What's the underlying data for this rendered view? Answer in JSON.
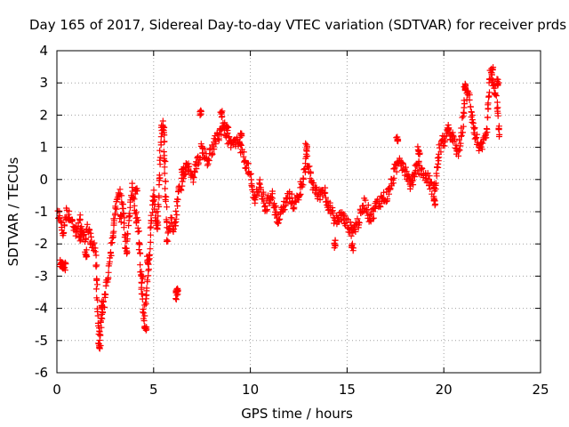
{
  "chart_data": {
    "type": "scatter",
    "title": "Day 165 of 2017, Sidereal Day-to-day VTEC variation (SDTVAR) for receiver prds",
    "xlabel": "GPS time / hours",
    "ylabel": "SDTVAR / TECUs",
    "xlim": [
      0,
      25
    ],
    "ylim": [
      -6,
      4
    ],
    "xticks": [
      0,
      5,
      10,
      15,
      20,
      25
    ],
    "yticks": [
      -6,
      -5,
      -4,
      -3,
      -2,
      -1,
      0,
      1,
      2,
      3,
      4
    ],
    "grid": true,
    "marker": "plus",
    "color": "#ff0000",
    "series": [
      {
        "name": "SDTVAR",
        "trend": [
          [
            0.0,
            -1.3
          ],
          [
            0.1,
            -1.1
          ],
          [
            0.3,
            -1.7
          ],
          [
            0.5,
            -1.0
          ],
          [
            0.8,
            -1.3
          ],
          [
            1.0,
            -1.7
          ],
          [
            1.2,
            -1.2
          ],
          [
            1.4,
            -1.9
          ],
          [
            1.6,
            -1.5
          ],
          [
            1.8,
            -2.0
          ],
          [
            2.0,
            -2.2
          ],
          [
            2.1,
            -4.2
          ],
          [
            2.2,
            -5.0
          ],
          [
            2.3,
            -4.3
          ],
          [
            2.5,
            -3.6
          ],
          [
            2.7,
            -2.8
          ],
          [
            2.9,
            -1.8
          ],
          [
            3.0,
            -0.9
          ],
          [
            3.2,
            -0.4
          ],
          [
            3.4,
            -0.6
          ],
          [
            3.5,
            -1.6
          ],
          [
            3.6,
            -2.4
          ],
          [
            3.7,
            -1.4
          ],
          [
            3.8,
            -0.7
          ],
          [
            3.9,
            -0.3
          ],
          [
            4.0,
            -0.8
          ],
          [
            4.2,
            -1.5
          ],
          [
            4.4,
            -3.4
          ],
          [
            4.5,
            -4.4
          ],
          [
            4.7,
            -3.2
          ],
          [
            4.9,
            -1.0
          ],
          [
            5.0,
            -0.4
          ],
          [
            5.1,
            -1.1
          ],
          [
            5.2,
            -1.6
          ],
          [
            5.4,
            1.6
          ],
          [
            5.5,
            1.8
          ],
          [
            5.7,
            -1.9
          ],
          [
            5.9,
            -1.3
          ],
          [
            6.1,
            -1.6
          ],
          [
            6.3,
            -0.2
          ],
          [
            6.5,
            -0.1
          ],
          [
            6.7,
            0.5
          ],
          [
            7.0,
            0.0
          ],
          [
            7.3,
            0.6
          ],
          [
            7.5,
            1.0
          ],
          [
            7.8,
            0.6
          ],
          [
            8.0,
            0.9
          ],
          [
            8.3,
            1.3
          ],
          [
            8.6,
            1.7
          ],
          [
            9.0,
            1.0
          ],
          [
            9.3,
            1.2
          ],
          [
            9.6,
            0.8
          ],
          [
            9.9,
            0.3
          ],
          [
            10.2,
            -0.6
          ],
          [
            10.5,
            -0.2
          ],
          [
            10.8,
            -0.9
          ],
          [
            11.1,
            -0.4
          ],
          [
            11.4,
            -1.3
          ],
          [
            11.7,
            -0.9
          ],
          [
            12.0,
            -0.5
          ],
          [
            12.3,
            -0.8
          ],
          [
            12.6,
            -0.3
          ],
          [
            12.9,
            0.6
          ],
          [
            13.2,
            -0.1
          ],
          [
            13.5,
            -0.5
          ],
          [
            13.8,
            -0.3
          ],
          [
            14.1,
            -0.9
          ],
          [
            14.4,
            -1.3
          ],
          [
            14.7,
            -1.1
          ],
          [
            15.0,
            -1.4
          ],
          [
            15.3,
            -1.6
          ],
          [
            15.6,
            -1.3
          ],
          [
            15.9,
            -0.7
          ],
          [
            16.2,
            -1.2
          ],
          [
            16.5,
            -0.8
          ],
          [
            16.8,
            -0.6
          ],
          [
            17.1,
            -0.5
          ],
          [
            17.4,
            0.1
          ],
          [
            17.7,
            0.7
          ],
          [
            18.0,
            0.3
          ],
          [
            18.3,
            -0.2
          ],
          [
            18.6,
            0.5
          ],
          [
            18.9,
            0.2
          ],
          [
            19.2,
            0.0
          ],
          [
            19.5,
            -0.4
          ],
          [
            19.8,
            1.0
          ],
          [
            20.1,
            1.3
          ],
          [
            20.4,
            1.4
          ],
          [
            20.7,
            0.8
          ],
          [
            20.9,
            1.2
          ],
          [
            21.1,
            2.7
          ],
          [
            21.3,
            2.6
          ],
          [
            21.6,
            1.4
          ],
          [
            21.9,
            0.9
          ],
          [
            22.2,
            1.3
          ],
          [
            22.4,
            3.2
          ],
          [
            22.6,
            3.0
          ],
          [
            22.8,
            2.0
          ],
          [
            22.9,
            1.1
          ]
        ],
        "extra_clusters": [
          [
            0.2,
            -2.6
          ],
          [
            0.3,
            -2.7
          ],
          [
            0.4,
            -2.7
          ],
          [
            1.2,
            -1.8
          ],
          [
            1.5,
            -2.3
          ],
          [
            2.2,
            -5.2
          ],
          [
            2.3,
            -3.9
          ],
          [
            3.3,
            -1.2
          ],
          [
            4.1,
            -0.4
          ],
          [
            4.6,
            -4.6
          ],
          [
            4.7,
            -2.5
          ],
          [
            4.4,
            -3.1
          ],
          [
            5.5,
            1.5
          ],
          [
            6.2,
            -3.5
          ],
          [
            6.2,
            -3.6
          ],
          [
            6.5,
            0.3
          ],
          [
            7.4,
            2.1
          ],
          [
            8.5,
            2.0
          ],
          [
            8.8,
            1.6
          ],
          [
            9.5,
            1.4
          ],
          [
            12.9,
            1.0
          ],
          [
            14.4,
            -2.0
          ],
          [
            15.3,
            -2.1
          ],
          [
            17.6,
            1.3
          ],
          [
            18.7,
            0.9
          ],
          [
            19.5,
            -0.7
          ],
          [
            20.2,
            1.6
          ],
          [
            21.1,
            2.9
          ],
          [
            22.5,
            3.4
          ],
          [
            22.8,
            3.0
          ]
        ]
      }
    ]
  }
}
